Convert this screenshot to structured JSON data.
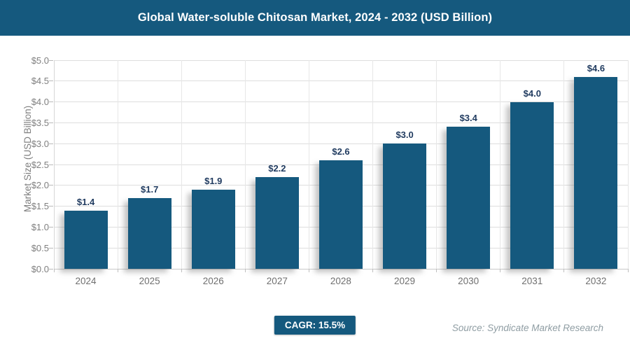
{
  "header": {
    "title": "Global Water-soluble Chitosan Market, 2024 - 2032 (USD Billion)"
  },
  "chart_data": {
    "type": "bar",
    "title": "Global Water-soluble Chitosan Market, 2024 - 2032 (USD Billion)",
    "categories": [
      "2024",
      "2025",
      "2026",
      "2027",
      "2028",
      "2029",
      "2030",
      "2031",
      "2032"
    ],
    "values": [
      1.4,
      1.7,
      1.9,
      2.2,
      2.6,
      3.0,
      3.4,
      4.0,
      4.6
    ],
    "bar_labels": [
      "$1.4",
      "$1.7",
      "$1.9",
      "$2.2",
      "$2.6",
      "$3.0",
      "$3.4",
      "$4.0",
      "$4.6"
    ],
    "xlabel": "",
    "ylabel": "Market Size (USD Billion)",
    "ylim": [
      0,
      5
    ],
    "ytick_step": 0.5,
    "ytick_labels": [
      "$0.0",
      "$0.5",
      "$1.0",
      "$1.5",
      "$2.0",
      "$2.5",
      "$3.0",
      "$3.5",
      "$4.0",
      "$4.5",
      "$5.0"
    ],
    "grid": true,
    "legend": "none",
    "bar_color": "#15597e"
  },
  "footer": {
    "cagr_label": "CAGR: 15.5%",
    "source": "Source: Syndicate Market Research"
  },
  "colors": {
    "header_bg": "#15597e",
    "bar_fill": "#15597e",
    "value_label": "#1f3a5f",
    "axis_text": "#7f7f7f",
    "gridline": "#dedede",
    "source_text": "#8f9da3"
  }
}
